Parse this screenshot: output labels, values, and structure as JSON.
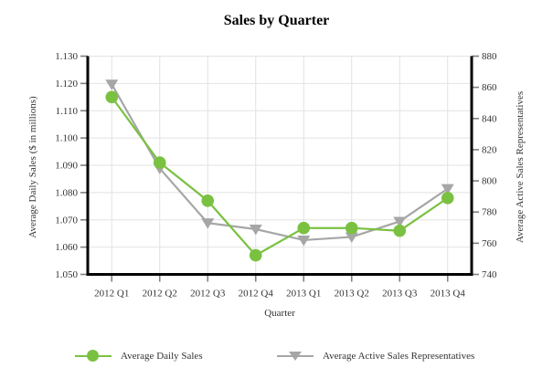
{
  "chart_data": {
    "type": "line",
    "title": "Sales by Quarter",
    "xlabel": "Quarter",
    "ylabel_left": "Average Daily Sales ($ in millions)",
    "ylabel_right": "Average Active Sales Representatives",
    "categories": [
      "2012 Q1",
      "2012 Q2",
      "2012 Q3",
      "2012 Q4",
      "2013 Q1",
      "2013 Q2",
      "2013 Q3",
      "2013 Q4"
    ],
    "left_axis": {
      "min": 1.05,
      "max": 1.13,
      "tick_labels": [
        "1.050",
        "1.060",
        "1.070",
        "1.080",
        "1.090",
        "1.100",
        "1.110",
        "1.120",
        "1.130"
      ]
    },
    "right_axis": {
      "min": 740,
      "max": 880,
      "tick_labels": [
        "740",
        "760",
        "780",
        "800",
        "820",
        "840",
        "860",
        "880"
      ]
    },
    "series": [
      {
        "name": "Average Daily Sales",
        "axis": "left",
        "marker": "circle",
        "color": "#7AC142",
        "values": [
          1.115,
          1.091,
          1.077,
          1.057,
          1.067,
          1.067,
          1.066,
          1.078
        ]
      },
      {
        "name": "Average Active Sales Representatives",
        "axis": "right",
        "marker": "triangle-down",
        "color": "#A6A6A6",
        "values": [
          862,
          808,
          773,
          769,
          762,
          764,
          774,
          795
        ]
      }
    ],
    "grid": true,
    "legend_position": "bottom",
    "colors": {
      "grid": "#E2E2E2",
      "axis": "#000000",
      "tick": "#808080",
      "text": "#333333",
      "background": "#FFFFFF"
    }
  }
}
